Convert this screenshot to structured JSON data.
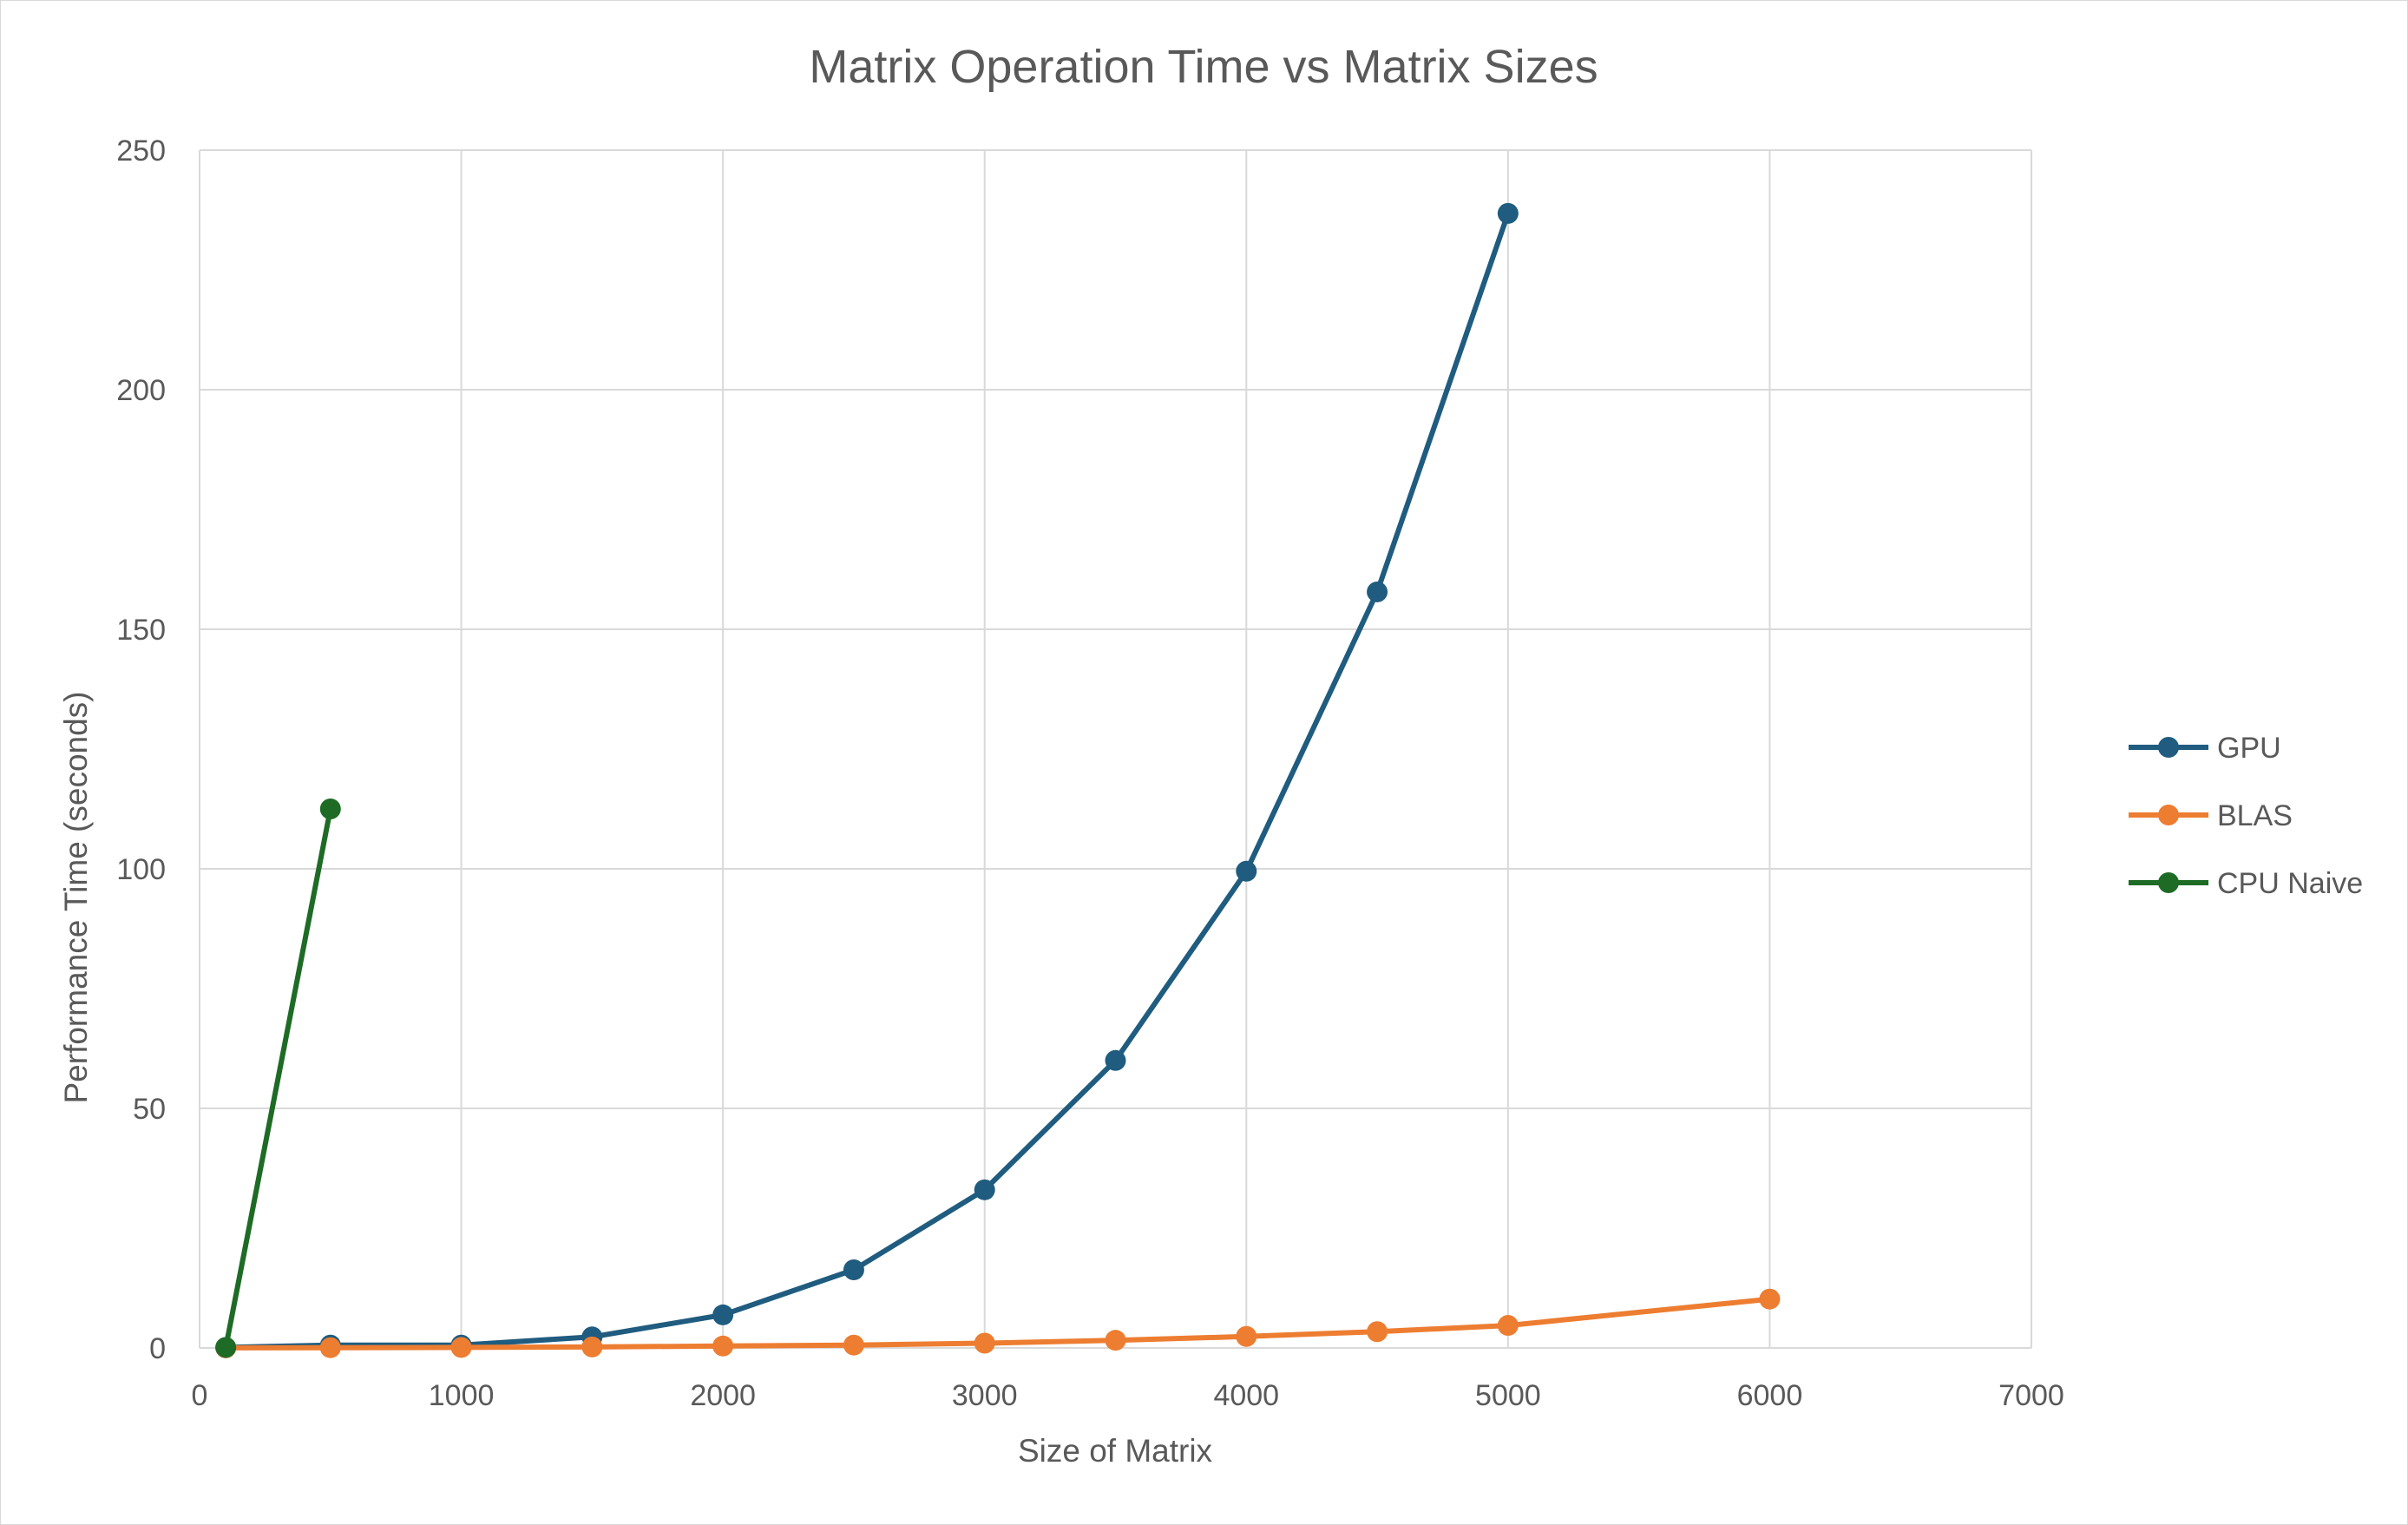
{
  "chart_data": {
    "type": "line",
    "title": "Matrix Operation Time vs Matrix Sizes",
    "xlabel": "Size of Matrix",
    "ylabel": "Performance Time (seconds)",
    "xlim": [
      0,
      7000
    ],
    "ylim": [
      0,
      250
    ],
    "x_ticks": [
      "0",
      "1000",
      "2000",
      "3000",
      "4000",
      "5000",
      "6000",
      "7000"
    ],
    "y_ticks": [
      "0",
      "50",
      "100",
      "150",
      "200",
      "250"
    ],
    "grid": true,
    "legend_position": "right",
    "series": [
      {
        "name": "GPU",
        "color": "#1f5c7f",
        "points": [
          [
            100,
            0.1
          ],
          [
            500,
            0.6
          ],
          [
            1000,
            0.6
          ],
          [
            1500,
            2.3
          ],
          [
            2000,
            6.9
          ],
          [
            2500,
            16.3
          ],
          [
            3000,
            33.0
          ],
          [
            3500,
            60.0
          ],
          [
            4000,
            99.5
          ],
          [
            4500,
            157.8
          ],
          [
            5000,
            236.8
          ]
        ]
      },
      {
        "name": "BLAS",
        "color": "#ed7d31",
        "points": [
          [
            100,
            0.01
          ],
          [
            500,
            0.05
          ],
          [
            1000,
            0.1
          ],
          [
            1500,
            0.2
          ],
          [
            2000,
            0.4
          ],
          [
            2500,
            0.6
          ],
          [
            3000,
            1.0
          ],
          [
            3500,
            1.6
          ],
          [
            4000,
            2.4
          ],
          [
            4500,
            3.4
          ],
          [
            5000,
            4.7
          ],
          [
            6000,
            10.2
          ]
        ]
      },
      {
        "name": "CPU Naive",
        "color": "#1e6b26",
        "points": [
          [
            100,
            0.1
          ],
          [
            500,
            112.5
          ]
        ]
      }
    ]
  }
}
